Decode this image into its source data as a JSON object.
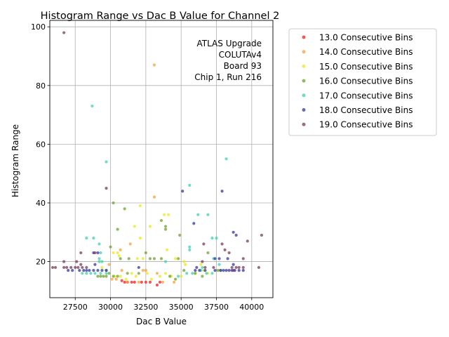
{
  "chart_data": {
    "type": "scatter",
    "title": "Histogram Range vs Dac B Value for Channel 2",
    "xlabel": "Dac B Value",
    "ylabel": "Histogram Range",
    "xlim": [
      25700,
      41500
    ],
    "ylim": [
      7.7,
      102.2
    ],
    "xticks": [
      {
        "value": 27500,
        "label": "27500"
      },
      {
        "value": 30000,
        "label": "30000"
      },
      {
        "value": 32500,
        "label": "32500"
      },
      {
        "value": 35000,
        "label": "35000"
      },
      {
        "value": 37500,
        "label": "37500"
      },
      {
        "value": 40000,
        "label": "40000"
      }
    ],
    "yticks": [
      {
        "value": 20,
        "label": "20"
      },
      {
        "value": 40,
        "label": "40"
      },
      {
        "value": 60,
        "label": "60"
      },
      {
        "value": 80,
        "label": "80"
      },
      {
        "value": 100,
        "label": "100"
      }
    ],
    "grid": true,
    "legend_position": "outside-right",
    "annotation": [
      "ATLAS Upgrade",
      "COLUTAv4",
      "Board 93",
      "Chip 1, Run 216"
    ],
    "series": [
      {
        "name": "13.0 Consecutive Bins",
        "color": "#ef2020",
        "points": [
          [
            31000,
            13
          ],
          [
            31200,
            13
          ],
          [
            31500,
            13
          ],
          [
            31700,
            13
          ],
          [
            32200,
            13
          ],
          [
            32500,
            13
          ],
          [
            32800,
            13
          ],
          [
            33300,
            12
          ],
          [
            33500,
            13
          ],
          [
            30800,
            13.5
          ]
        ]
      },
      {
        "name": "14.0 Consecutive Bins",
        "color": "#f5a040",
        "points": [
          [
            33100,
            87
          ],
          [
            33100,
            42
          ],
          [
            30700,
            24
          ],
          [
            30800,
            17
          ],
          [
            31400,
            26
          ],
          [
            32300,
            17
          ],
          [
            32500,
            17
          ],
          [
            33300,
            16
          ],
          [
            33700,
            13
          ],
          [
            34500,
            13
          ],
          [
            31200,
            13
          ],
          [
            32000,
            13
          ],
          [
            29900,
            19
          ],
          [
            30400,
            14
          ],
          [
            30100,
            14
          ]
        ]
      },
      {
        "name": "15.0 Consecutive Bins",
        "color": "#e8e820",
        "points": [
          [
            32100,
            39
          ],
          [
            33800,
            36
          ],
          [
            34100,
            36
          ],
          [
            31700,
            32
          ],
          [
            32800,
            32
          ],
          [
            32100,
            28
          ],
          [
            30200,
            23
          ],
          [
            30500,
            23
          ],
          [
            30600,
            22
          ],
          [
            31900,
            21
          ],
          [
            32300,
            21
          ],
          [
            34000,
            24
          ],
          [
            34600,
            21
          ],
          [
            35200,
            20
          ],
          [
            35300,
            19
          ],
          [
            36400,
            19
          ],
          [
            29400,
            18
          ],
          [
            30700,
            15
          ],
          [
            31500,
            16
          ],
          [
            31800,
            15
          ],
          [
            32900,
            14
          ],
          [
            33500,
            15
          ],
          [
            34300,
            15
          ],
          [
            35000,
            15
          ],
          [
            36000,
            16
          ],
          [
            36600,
            17
          ],
          [
            31100,
            14
          ],
          [
            30300,
            15
          ],
          [
            33900,
            16
          ],
          [
            36900,
            16
          ],
          [
            37700,
            17
          ],
          [
            32600,
            16
          ]
        ]
      },
      {
        "name": "16.0 Consecutive Bins",
        "color": "#70a030",
        "points": [
          [
            30200,
            40
          ],
          [
            31000,
            38
          ],
          [
            33600,
            34
          ],
          [
            33900,
            32
          ],
          [
            33900,
            31
          ],
          [
            30500,
            31
          ],
          [
            34900,
            29
          ],
          [
            36900,
            23
          ],
          [
            32500,
            23
          ],
          [
            33600,
            21
          ],
          [
            33100,
            21
          ],
          [
            32800,
            21
          ],
          [
            31300,
            21
          ],
          [
            30000,
            25
          ],
          [
            30700,
            21
          ],
          [
            34800,
            21
          ],
          [
            29100,
            15
          ],
          [
            29300,
            15
          ],
          [
            29500,
            15
          ],
          [
            29700,
            15
          ],
          [
            29900,
            16
          ],
          [
            30200,
            15
          ],
          [
            30500,
            15
          ],
          [
            31200,
            16
          ],
          [
            32000,
            16
          ],
          [
            34200,
            15
          ],
          [
            35200,
            17
          ],
          [
            36000,
            16
          ],
          [
            36500,
            15
          ],
          [
            37600,
            17
          ],
          [
            29700,
            17
          ],
          [
            34600,
            14
          ]
        ]
      },
      {
        "name": "17.0 Consecutive Bins",
        "color": "#40d0b0",
        "points": [
          [
            28700,
            73
          ],
          [
            29700,
            54
          ],
          [
            38200,
            55
          ],
          [
            35600,
            46
          ],
          [
            36200,
            36
          ],
          [
            36900,
            36
          ],
          [
            28300,
            28
          ],
          [
            28800,
            28
          ],
          [
            37200,
            28
          ],
          [
            37500,
            28
          ],
          [
            29200,
            26
          ],
          [
            35600,
            25
          ],
          [
            35600,
            24
          ],
          [
            28000,
            16
          ],
          [
            28300,
            16
          ],
          [
            28600,
            16
          ],
          [
            28900,
            16
          ],
          [
            29300,
            16
          ],
          [
            29700,
            16
          ],
          [
            29200,
            21
          ],
          [
            29400,
            20
          ],
          [
            29200,
            20
          ],
          [
            29300,
            23
          ],
          [
            34800,
            15
          ],
          [
            35400,
            16
          ],
          [
            35800,
            16
          ],
          [
            36400,
            17
          ],
          [
            36800,
            16
          ],
          [
            37200,
            16
          ],
          [
            37800,
            17
          ],
          [
            37300,
            21
          ],
          [
            37700,
            19
          ],
          [
            33900,
            20
          ],
          [
            36500,
            18
          ]
        ]
      },
      {
        "name": "18.0 Consecutive Bins",
        "color": "#3535a0",
        "points": [
          [
            35100,
            44
          ],
          [
            37900,
            44
          ],
          [
            35900,
            33
          ],
          [
            38700,
            30
          ],
          [
            38900,
            29
          ],
          [
            38300,
            21
          ],
          [
            37700,
            21
          ],
          [
            37400,
            21
          ],
          [
            38700,
            19
          ],
          [
            36100,
            18
          ],
          [
            36700,
            17
          ],
          [
            27000,
            17
          ],
          [
            27300,
            17
          ],
          [
            27800,
            17
          ],
          [
            28100,
            17
          ],
          [
            28300,
            17
          ],
          [
            28500,
            17
          ],
          [
            28800,
            17
          ],
          [
            29100,
            17
          ],
          [
            29400,
            17
          ],
          [
            29700,
            17
          ],
          [
            36000,
            17
          ],
          [
            36300,
            17
          ],
          [
            37400,
            17
          ],
          [
            37800,
            17
          ],
          [
            38000,
            17
          ],
          [
            38200,
            17
          ],
          [
            38400,
            17
          ],
          [
            38600,
            17
          ],
          [
            38800,
            17
          ],
          [
            39100,
            17
          ],
          [
            39400,
            17
          ],
          [
            28900,
            19
          ],
          [
            28800,
            23
          ],
          [
            29100,
            23
          ],
          [
            32000,
            18
          ]
        ]
      },
      {
        "name": "19.0 Consecutive Bins",
        "color": "#7a3a58",
        "points": [
          [
            26700,
            98
          ],
          [
            29700,
            45
          ],
          [
            40700,
            29
          ],
          [
            39700,
            27
          ],
          [
            36600,
            26
          ],
          [
            37900,
            26
          ],
          [
            38100,
            24
          ],
          [
            38400,
            23
          ],
          [
            27900,
            23
          ],
          [
            39400,
            21
          ],
          [
            26700,
            20
          ],
          [
            27600,
            20
          ],
          [
            36500,
            20
          ],
          [
            25900,
            18
          ],
          [
            26100,
            18
          ],
          [
            26700,
            18
          ],
          [
            26900,
            18
          ],
          [
            27200,
            18
          ],
          [
            27500,
            18
          ],
          [
            27700,
            18
          ],
          [
            28000,
            18
          ],
          [
            28300,
            18
          ],
          [
            36700,
            18
          ],
          [
            37300,
            18
          ],
          [
            38600,
            18
          ],
          [
            38900,
            18
          ],
          [
            39100,
            18
          ],
          [
            39400,
            18
          ],
          [
            40500,
            18
          ],
          [
            28900,
            23
          ],
          [
            27900,
            19
          ],
          [
            38700,
            17
          ]
        ]
      }
    ]
  }
}
